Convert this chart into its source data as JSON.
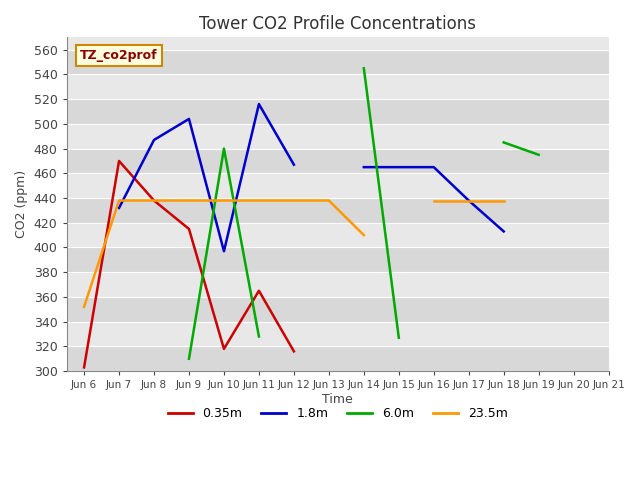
{
  "title": "Tower CO2 Profile Concentrations",
  "xlabel": "Time",
  "ylabel": "CO2 (ppm)",
  "annotation": "TZ_co2prof",
  "ylim": [
    300,
    570
  ],
  "yticks": [
    300,
    320,
    340,
    360,
    380,
    400,
    420,
    440,
    460,
    480,
    500,
    520,
    540,
    560
  ],
  "x_labels": [
    "Jun 6",
    "Jun 7",
    "Jun 8",
    "Jun 9",
    "Jun 10",
    "Jun 11",
    "Jun 12",
    "Jun 13",
    "Jun 14",
    "Jun 15",
    "Jun 16",
    "Jun 17",
    "Jun 18",
    "Jun 19",
    "Jun 20",
    "Jun 21"
  ],
  "fig_bg": "#ffffff",
  "plot_bg": "#e8e8e8",
  "grid_color": "#ffffff",
  "band_colors": [
    "#d8d8d8",
    "#e8e8e8"
  ],
  "series": [
    {
      "label": "0.35m",
      "color": "#cc0000",
      "segments": [
        [
          [
            0,
            303
          ],
          [
            1,
            470
          ],
          [
            2,
            438
          ],
          [
            3,
            415
          ],
          [
            4,
            318
          ],
          [
            5,
            365
          ],
          [
            6,
            316
          ]
        ]
      ]
    },
    {
      "label": "1.8m",
      "color": "#0000cc",
      "segments": [
        [
          [
            1,
            432
          ],
          [
            2,
            487
          ],
          [
            3,
            504
          ],
          [
            4,
            397
          ],
          [
            5,
            516
          ],
          [
            6,
            467
          ]
        ],
        [
          [
            8,
            465
          ],
          [
            9,
            465
          ],
          [
            10,
            465
          ],
          [
            11,
            438
          ],
          [
            12,
            413
          ]
        ]
      ]
    },
    {
      "label": "6.0m",
      "color": "#00aa00",
      "segments": [
        [
          [
            3,
            310
          ],
          [
            4,
            480
          ],
          [
            5,
            328
          ]
        ],
        [
          [
            8,
            545
          ],
          [
            9,
            327
          ]
        ],
        [
          [
            12,
            485
          ],
          [
            13,
            475
          ]
        ]
      ]
    },
    {
      "label": "23.5m",
      "color": "#ff9900",
      "segments": [
        [
          [
            0,
            352
          ],
          [
            1,
            438
          ],
          [
            2,
            438
          ],
          [
            3,
            438
          ],
          [
            4,
            438
          ],
          [
            5,
            438
          ],
          [
            6,
            438
          ],
          [
            7,
            438
          ],
          [
            8,
            410
          ]
        ],
        [
          [
            10,
            438
          ],
          [
            11,
            438
          ],
          [
            12,
            438
          ]
        ]
      ]
    }
  ],
  "legend_items": [
    "0.35m",
    "1.8m",
    "6.0m",
    "23.5m"
  ],
  "legend_colors": [
    "#cc0000",
    "#0000cc",
    "#00aa00",
    "#ff9900"
  ]
}
